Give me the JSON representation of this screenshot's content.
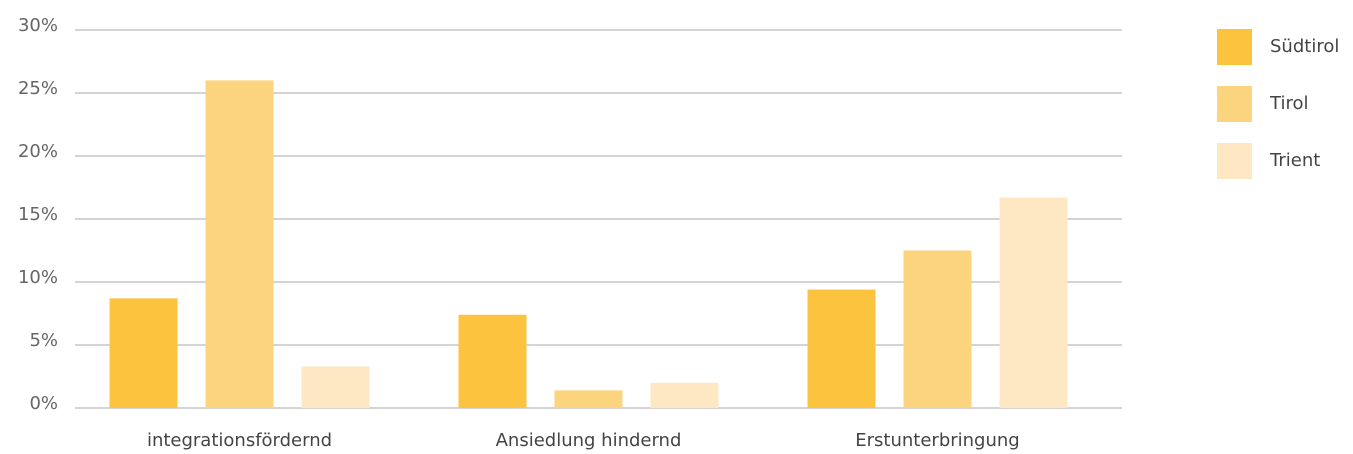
{
  "chart_data": {
    "type": "bar",
    "categories": [
      "integrationsfördernd",
      "Ansiedlung hindernd",
      "Erstunterbringung"
    ],
    "series": [
      {
        "name": "Südtirol",
        "color": "#fcc33f",
        "values": [
          8.7,
          7.4,
          9.4
        ]
      },
      {
        "name": "Tirol",
        "color": "#fdd47e",
        "values": [
          26.0,
          1.4,
          12.5
        ]
      },
      {
        "name": "Trient",
        "color": "#fee8c3",
        "values": [
          3.3,
          2.0,
          16.7
        ]
      }
    ],
    "ylim": [
      0,
      30
    ],
    "yticks": [
      {
        "value": 0,
        "label": "0%"
      },
      {
        "value": 5,
        "label": "5%"
      },
      {
        "value": 10,
        "label": "10%"
      },
      {
        "value": 15,
        "label": "15%"
      },
      {
        "value": 20,
        "label": "20%"
      },
      {
        "value": 25,
        "label": "25%"
      },
      {
        "value": 30,
        "label": "30%"
      }
    ],
    "grid": true,
    "legend": "right"
  }
}
